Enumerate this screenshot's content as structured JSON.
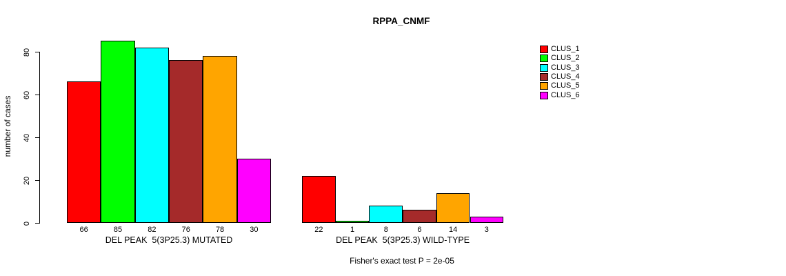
{
  "chart_data": {
    "type": "bar",
    "title": "RPPA_CNMF",
    "xlabel": "",
    "ylabel": "number of cases",
    "ylim": [
      0,
      80
    ],
    "yticks": [
      0,
      20,
      40,
      60,
      80
    ],
    "grid": false,
    "legend_position": "right",
    "series": [
      {
        "name": "CLUS_1",
        "color": "#FF0000"
      },
      {
        "name": "CLUS_2",
        "color": "#00FF00"
      },
      {
        "name": "CLUS_3",
        "color": "#00FFFF"
      },
      {
        "name": "CLUS_4",
        "color": "#A52A2A"
      },
      {
        "name": "CLUS_5",
        "color": "#FFA500"
      },
      {
        "name": "CLUS_6",
        "color": "#FF00FF"
      }
    ],
    "groups": [
      {
        "label": "DEL PEAK  5(3P25.3) MUTATED",
        "values": [
          66,
          85,
          82,
          76,
          78,
          30
        ]
      },
      {
        "label": "DEL PEAK  5(3P25.3) WILD-TYPE",
        "values": [
          22,
          1,
          8,
          6,
          14,
          3
        ]
      }
    ],
    "bar_value_labels_shown": true,
    "annotation": "Fisher's exact test P = 2e-05"
  }
}
